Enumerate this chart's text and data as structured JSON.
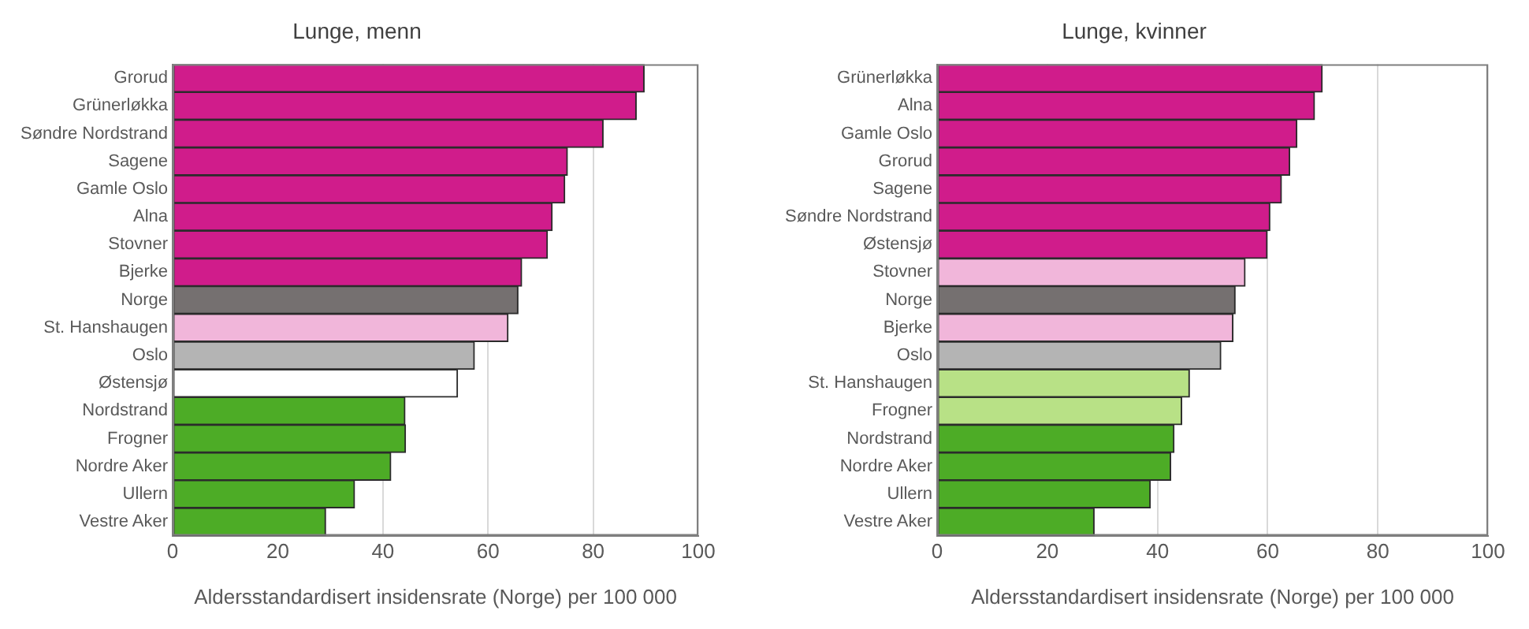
{
  "chart_data": [
    {
      "type": "bar",
      "orientation": "horizontal",
      "title": "Lunge, menn",
      "xlabel": "Aldersstandardisert insidensrate (Norge) per 100 000",
      "categories": [
        "Grorud",
        "Grünerløkka",
        "Søndre Nordstrand",
        "Sagene",
        "Gamle Oslo",
        "Alna",
        "Stovner",
        "Bjerke",
        "Norge",
        "St. Hanshaugen",
        "Oslo",
        "Østensjø",
        "Nordstrand",
        "Frogner",
        "Nordre Aker",
        "Ullern",
        "Vestre Aker"
      ],
      "values": [
        89.7,
        88.2,
        81.9,
        75.1,
        74.6,
        72.2,
        71.3,
        66.4,
        65.7,
        63.8,
        57.4,
        54.2,
        44.2,
        44.3,
        41.5,
        34.6,
        29.1
      ],
      "colors": [
        "#d01c8b",
        "#d01c8b",
        "#d01c8b",
        "#d01c8b",
        "#d01c8b",
        "#d01c8b",
        "#d01c8b",
        "#d01c8b",
        "#757070",
        "#f1b6da",
        "#b4b4b4",
        "#ffffff",
        "#4dac26",
        "#4dac26",
        "#4dac26",
        "#4dac26",
        "#4dac26"
      ],
      "xlim": [
        0,
        100
      ],
      "xticks": [
        0,
        20,
        40,
        60,
        80,
        100
      ],
      "grid": "x",
      "legend": false
    },
    {
      "type": "bar",
      "orientation": "horizontal",
      "title": "Lunge, kvinner",
      "xlabel": "Aldersstandardisert insidensrate (Norge) per 100 000",
      "categories": [
        "Grünerløkka",
        "Alna",
        "Gamle Oslo",
        "Grorud",
        "Sagene",
        "Søndre Nordstrand",
        "Østensjø",
        "Stovner",
        "Norge",
        "Bjerke",
        "Oslo",
        "St. Hanshaugen",
        "Frogner",
        "Nordstrand",
        "Nordre Aker",
        "Ullern",
        "Vestre Aker"
      ],
      "values": [
        69.9,
        68.5,
        65.3,
        64.0,
        62.5,
        60.4,
        59.9,
        55.9,
        54.1,
        53.7,
        51.5,
        45.8,
        44.4,
        43.0,
        42.4,
        38.7,
        28.5
      ],
      "colors": [
        "#d01c8b",
        "#d01c8b",
        "#d01c8b",
        "#d01c8b",
        "#d01c8b",
        "#d01c8b",
        "#d01c8b",
        "#f1b6da",
        "#757070",
        "#f1b6da",
        "#b4b4b4",
        "#b8e186",
        "#b8e186",
        "#4dac26",
        "#4dac26",
        "#4dac26",
        "#4dac26"
      ],
      "xlim": [
        0,
        100
      ],
      "xticks": [
        0,
        20,
        40,
        60,
        80,
        100
      ],
      "grid": "x",
      "legend": false
    }
  ]
}
